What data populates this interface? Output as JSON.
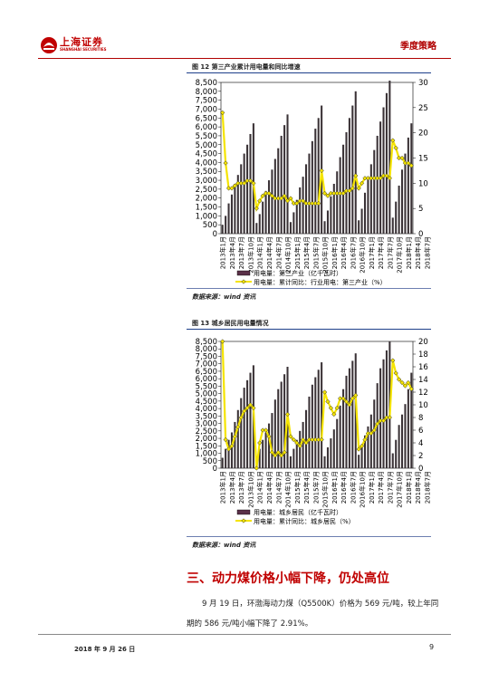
{
  "header": {
    "logo_text": "上海证券",
    "logo_sub": "SHANGHAI SECURITIES",
    "section_label": "季度策略"
  },
  "figure12": {
    "title": "图 12 第三产业累计用电量和同比增速",
    "source": "数据来源：wind 资讯",
    "legend_bar": "用电量：第三产业（亿千瓦时）",
    "legend_line": "用电量：累计同比：行业用电：第三产业（%）"
  },
  "figure13": {
    "title": "图 13 城乡居民用电量情况",
    "source": "数据来源：wind 资讯",
    "legend_bar": "用电量：城乡居民（亿千瓦时）",
    "legend_line": "用电量：累计同比：城乡居民（%）"
  },
  "section": {
    "heading": "三、动力煤价格小幅下降，仍处高位",
    "paragraph": "9 月 19 日，环渤海动力煤（Q5500K）价格为 569 元/吨，较上年同期的 586 元/吨小幅下降了 2.91%。"
  },
  "footer": {
    "date": "2018 年 9 月 26 日",
    "page": "9"
  },
  "chart_data": [
    {
      "type": "bar",
      "title": "图 12 第三产业累计用电量和同比增速",
      "x_tick_labels": [
        "2013年1月",
        "2013年4月",
        "2013年7月",
        "2013年10月",
        "2014年1月",
        "2014年4月",
        "2014年7月",
        "2014年10月",
        "2015年1月",
        "2015年4月",
        "2015年7月",
        "2015年10月",
        "2016年1月",
        "2016年4月",
        "2016年7月",
        "2016年10月",
        "2017年1月",
        "2017年4月",
        "2017年7月",
        "2017年10月",
        "2018年1月",
        "2018年4月",
        "2018年7月"
      ],
      "y_left_ticks": [
        "0",
        "500",
        "1,000",
        "1,500",
        "2,000",
        "2,500",
        "3,000",
        "3,500",
        "4,000",
        "4,500",
        "5,000",
        "5,500",
        "6,000",
        "6,500",
        "7,000",
        "7,500",
        "8,000",
        "8,500"
      ],
      "y_right_ticks": [
        "0",
        "5",
        "10",
        "15",
        "20",
        "25",
        "30"
      ],
      "ylim_left": [
        0,
        8500
      ],
      "ylim_right": [
        0,
        30
      ],
      "series": [
        {
          "name": "用电量：第三产业（亿千瓦时）",
          "type": "bar",
          "axis": "left",
          "values": [
            500,
            1000,
            1700,
            2200,
            2800,
            3300,
            3900,
            4500,
            5000,
            5600,
            6200,
            600,
            1100,
            1800,
            2400,
            3000,
            3600,
            4200,
            4800,
            5500,
            6100,
            6700,
            650,
            1200,
            1900,
            2600,
            3200,
            3900,
            4500,
            5200,
            5900,
            6500,
            7200,
            700,
            1300,
            2100,
            2800,
            3500,
            4300,
            5000,
            5700,
            6500,
            7200,
            8000,
            750,
            1400,
            2300,
            3100,
            3900,
            4700,
            5500,
            6300,
            7100,
            7900,
            8600,
            900,
            1800,
            2700,
            3600,
            4500,
            5400,
            6200
          ]
        },
        {
          "name": "用电量：累计同比：行业用电：第三产业（%）",
          "type": "line",
          "axis": "right",
          "values": [
            24,
            14,
            9,
            9,
            9.5,
            10,
            10,
            10,
            10.5,
            10.5,
            10,
            5,
            6.5,
            7.5,
            8,
            8,
            7.5,
            7,
            7,
            7,
            7.5,
            6.5,
            7,
            6,
            6,
            6.5,
            6.5,
            6,
            6,
            6,
            6,
            6,
            12.5,
            8,
            7.5,
            8,
            8,
            8,
            8,
            8,
            8.5,
            8.5,
            9,
            11.5,
            9,
            10,
            11,
            11,
            11,
            11,
            11,
            11,
            11.5,
            11.5,
            11,
            18.5,
            17,
            15,
            15,
            14,
            14,
            13.5
          ]
        }
      ]
    },
    {
      "type": "bar",
      "title": "图 13 城乡居民用电量情况",
      "x_tick_labels": [
        "2013年1月",
        "2013年4月",
        "2013年7月",
        "2013年10月",
        "2014年1月",
        "2014年4月",
        "2014年7月",
        "2014年10月",
        "2015年1月",
        "2015年4月",
        "2015年7月",
        "2015年10月",
        "2016年1月",
        "2016年4月",
        "2016年7月",
        "2016年10月",
        "2017年1月",
        "2017年4月",
        "2017年7月",
        "2017年10月",
        "2018年1月",
        "2018年4月",
        "2018年7月"
      ],
      "y_left_ticks": [
        "0",
        "500",
        "1,000",
        "1,500",
        "2,000",
        "2,500",
        "3,000",
        "3,500",
        "4,000",
        "4,500",
        "5,000",
        "5,500",
        "6,000",
        "6,500",
        "7,000",
        "7,500",
        "8,000",
        "8,500"
      ],
      "y_right_ticks": [
        "0",
        "2",
        "4",
        "6",
        "8",
        "10",
        "12",
        "14",
        "16",
        "18",
        "20"
      ],
      "ylim_left": [
        0,
        8500
      ],
      "ylim_right": [
        0,
        20
      ],
      "series": [
        {
          "name": "用电量：城乡居民（亿千瓦时）",
          "type": "bar",
          "axis": "left",
          "values": [
            700,
            1300,
            1900,
            2400,
            3100,
            3900,
            4700,
            5400,
            5900,
            6400,
            6900,
            700,
            1300,
            1900,
            2400,
            3000,
            3700,
            4600,
            5300,
            5800,
            6300,
            6800,
            800,
            1300,
            1900,
            2500,
            3100,
            3900,
            4800,
            5600,
            6100,
            6600,
            7100,
            800,
            1400,
            2000,
            2600,
            3300,
            4200,
            5300,
            6200,
            6700,
            7200,
            7700,
            900,
            1500,
            2200,
            2800,
            3600,
            4600,
            5700,
            6700,
            7300,
            7900,
            8500,
            1000,
            1900,
            2900,
            3600,
            4300,
            5300,
            6400
          ]
        },
        {
          "name": "用电量：累计同比：城乡居民（%）",
          "type": "line",
          "axis": "right",
          "values": [
            20,
            4.5,
            3,
            3.5,
            5,
            6.5,
            8,
            9,
            9.5,
            10,
            9.5,
            0,
            4,
            6,
            6,
            5,
            2.5,
            2,
            2.5,
            2,
            2.5,
            8.5,
            5,
            4.5,
            4,
            3.5,
            4.5,
            4,
            4.5,
            4.5,
            4.5,
            4.5,
            4.5,
            12,
            10.5,
            9.5,
            8.5,
            9.5,
            11,
            11,
            10.5,
            10,
            11,
            11.5,
            3,
            3.5,
            4.5,
            5.5,
            5.5,
            6,
            7,
            7.5,
            7.5,
            8,
            8,
            17,
            15,
            14,
            13.5,
            13,
            13.5,
            12.5
          ]
        }
      ]
    }
  ]
}
